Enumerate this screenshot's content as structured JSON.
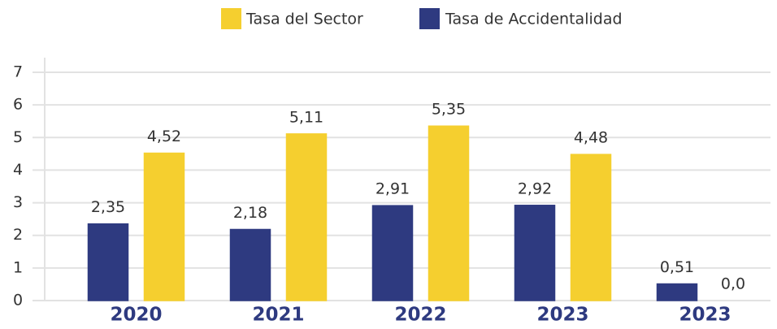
{
  "chart_data": {
    "type": "bar",
    "categories": [
      "2020",
      "2021",
      "2022",
      "2023",
      "2023"
    ],
    "series": [
      {
        "name": "Tasa de Accidentalidad",
        "color": "#2e3a80",
        "values": [
          2.35,
          2.18,
          2.91,
          2.92,
          0.51
        ],
        "value_labels": [
          "2,35",
          "2,18",
          "2,91",
          "2,92",
          "0,51"
        ]
      },
      {
        "name": "Tasa del Sector",
        "color": "#f5cf2f",
        "values": [
          4.52,
          5.11,
          5.35,
          4.48,
          0.0
        ],
        "value_labels": [
          "4,52",
          "5,11",
          "5,35",
          "4,48",
          "0,0"
        ]
      }
    ],
    "ylim": [
      0,
      7
    ],
    "yticks": [
      0,
      1,
      2,
      3,
      4,
      5,
      6,
      7
    ],
    "grid": true,
    "legend": "top"
  }
}
